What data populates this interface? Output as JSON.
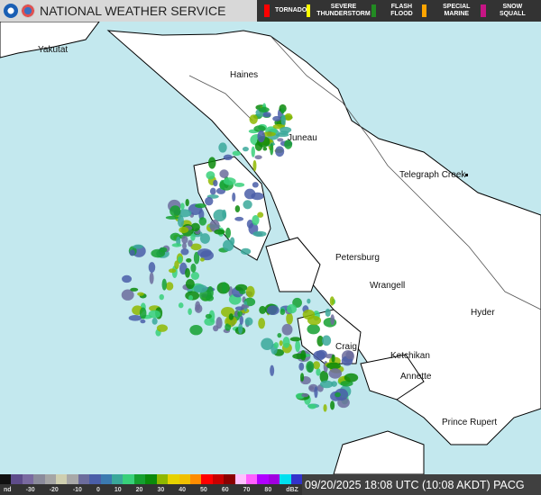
{
  "header": {
    "title": "NATIONAL WEATHER SERVICE",
    "warnings": [
      {
        "label": "TORNADO",
        "color": "#ff0000"
      },
      {
        "label": "SEVERE THUNDERSTORM",
        "color": "#ffff00"
      },
      {
        "label": "FLASH FLOOD",
        "color": "#228b22"
      },
      {
        "label": "SPECIAL MARINE",
        "color": "#ffa500"
      },
      {
        "label": "SNOW SQUALL",
        "color": "#c71585"
      }
    ]
  },
  "map": {
    "cities": [
      "Yakutat",
      "Haines",
      "Juneau",
      "Telegraph Creek",
      "Petersburg",
      "Wrangell",
      "Hyder",
      "Craig",
      "Ketchikan",
      "Annette",
      "Prince Rupert"
    ],
    "colors": {
      "water": "#c3e8ee",
      "land": "#ffffff"
    }
  },
  "legend": {
    "ticks": [
      "nd",
      "-30",
      "-20",
      "-10",
      "0",
      "10",
      "20",
      "30",
      "40",
      "50",
      "60",
      "70",
      "80",
      "dBZ"
    ],
    "colors": [
      "#111",
      "#5e4c8a",
      "#7a6aa0",
      "#8b8b9b",
      "#a5a5a5",
      "#cfcfb0",
      "#a8a8a8",
      "#6c6c9c",
      "#4a5ea8",
      "#3b7ab0",
      "#3aa89a",
      "#38d07a",
      "#15a030",
      "#0b8a0b",
      "#8fb800",
      "#e6d200",
      "#f0c000",
      "#ff8c00",
      "#ff0000",
      "#c80000",
      "#8b0000",
      "#ffc0ff",
      "#ff60ff",
      "#b000ff",
      "#a000e0",
      "#00e0f0",
      "#3333cc"
    ]
  },
  "timestamp": "09/20/2025 18:08 UTC (10:08 AKDT) PACG"
}
